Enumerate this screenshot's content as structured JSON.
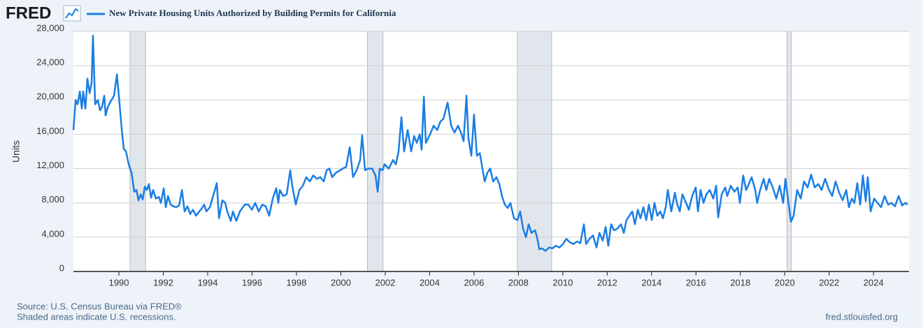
{
  "logo": "FRED",
  "footer": {
    "source": "Source: U.S. Census Bureau via FRED®",
    "note": "Shaded areas indicate U.S. recessions.",
    "url": "fred.stlouisfed.org"
  },
  "chart_data": {
    "type": "line",
    "y_label": "Units",
    "xlim": [
      1987.95,
      2025.6
    ],
    "ylim": [
      0,
      28000
    ],
    "xticks": [
      1990,
      1992,
      1994,
      1996,
      1998,
      2000,
      2002,
      2004,
      2006,
      2008,
      2010,
      2012,
      2014,
      2016,
      2018,
      2020,
      2022,
      2024
    ],
    "yticks": [
      0,
      {
        "value": 4000,
        "label": "4,000"
      },
      {
        "value": 8000,
        "label": "8,000"
      },
      {
        "value": 12000,
        "label": "12,000"
      },
      {
        "value": 16000,
        "label": "16,000"
      },
      {
        "value": 20000,
        "label": "20,000"
      },
      {
        "value": 24000,
        "label": "24,000"
      },
      {
        "value": 28000,
        "label": "28,000"
      }
    ],
    "grid": true,
    "recessions": [
      [
        1990.5,
        1991.2
      ],
      [
        2001.2,
        2001.9
      ],
      [
        2007.95,
        2009.5
      ],
      [
        2020.1,
        2020.3
      ]
    ],
    "x": [
      1987.95,
      1988.05,
      1988.14,
      1988.24,
      1988.33,
      1988.39,
      1988.49,
      1988.58,
      1988.68,
      1988.77,
      1988.83,
      1988.93,
      1989.05,
      1989.15,
      1989.24,
      1989.34,
      1989.4,
      1989.5,
      1989.62,
      1989.78,
      1989.91,
      1990.03,
      1990.13,
      1990.22,
      1990.32,
      1990.44,
      1990.57,
      1990.69,
      1990.79,
      1990.88,
      1990.98,
      1991.07,
      1991.17,
      1991.26,
      1991.35,
      1991.45,
      1991.54,
      1991.67,
      1991.8,
      1991.89,
      1992.02,
      1992.11,
      1992.21,
      1992.33,
      1992.46,
      1992.58,
      1992.71,
      1992.84,
      1992.96,
      1993.09,
      1993.21,
      1993.34,
      1993.47,
      1993.59,
      1993.72,
      1993.84,
      1993.94,
      1994.1,
      1994.41,
      1994.51,
      1994.66,
      1994.79,
      1994.88,
      1995.04,
      1995.14,
      1995.29,
      1995.45,
      1995.67,
      1995.83,
      1995.99,
      1996.14,
      1996.3,
      1996.46,
      1996.62,
      1996.77,
      1996.93,
      1997.09,
      1997.18,
      1997.25,
      1997.4,
      1997.56,
      1997.72,
      1997.81,
      1997.97,
      1998.13,
      1998.29,
      1998.44,
      1998.6,
      1998.76,
      1998.92,
      1999.07,
      1999.23,
      1999.36,
      1999.48,
      1999.61,
      1999.77,
      1999.96,
      2000.08,
      2000.24,
      2000.4,
      2000.55,
      2000.71,
      2000.87,
      2000.96,
      2001.09,
      2001.22,
      2001.41,
      2001.56,
      2001.66,
      2001.75,
      2001.88,
      2001.97,
      2002.16,
      2002.35,
      2002.48,
      2002.6,
      2002.73,
      2002.85,
      2003.01,
      2003.17,
      2003.3,
      2003.42,
      2003.55,
      2003.64,
      2003.74,
      2003.83,
      2004.02,
      2004.18,
      2004.34,
      2004.49,
      2004.62,
      2004.81,
      2004.97,
      2005.12,
      2005.28,
      2005.44,
      2005.53,
      2005.66,
      2005.75,
      2005.88,
      2006.0,
      2006.13,
      2006.26,
      2006.38,
      2006.48,
      2006.6,
      2006.73,
      2006.86,
      2007.01,
      2007.14,
      2007.27,
      2007.39,
      2007.52,
      2007.64,
      2007.8,
      2007.96,
      2008.08,
      2008.21,
      2008.34,
      2008.46,
      2008.59,
      2008.75,
      2008.84,
      2008.94,
      2009.06,
      2009.22,
      2009.38,
      2009.53,
      2009.69,
      2009.85,
      2010.01,
      2010.16,
      2010.32,
      2010.48,
      2010.64,
      2010.79,
      2010.95,
      2011.05,
      2011.2,
      2011.36,
      2011.52,
      2011.65,
      2011.8,
      2011.93,
      2012.05,
      2012.18,
      2012.31,
      2012.46,
      2012.62,
      2012.75,
      2012.87,
      2013.0,
      2013.13,
      2013.25,
      2013.38,
      2013.5,
      2013.63,
      2013.76,
      2013.88,
      2014.01,
      2014.13,
      2014.26,
      2014.39,
      2014.51,
      2014.64,
      2014.73,
      2014.89,
      2015.05,
      2015.14,
      2015.27,
      2015.39,
      2015.52,
      2015.68,
      2015.83,
      2015.99,
      2016.09,
      2016.21,
      2016.34,
      2016.47,
      2016.62,
      2016.78,
      2016.91,
      2017.0,
      2017.16,
      2017.32,
      2017.41,
      2017.57,
      2017.73,
      2017.88,
      2017.98,
      2018.13,
      2018.26,
      2018.35,
      2018.51,
      2018.67,
      2018.76,
      2018.89,
      2019.05,
      2019.17,
      2019.3,
      2019.46,
      2019.62,
      2019.77,
      2019.93,
      2020.03,
      2020.18,
      2020.28,
      2020.4,
      2020.56,
      2020.72,
      2020.87,
      2021.03,
      2021.19,
      2021.35,
      2021.51,
      2021.66,
      2021.82,
      2021.98,
      2022.14,
      2022.29,
      2022.45,
      2022.61,
      2022.77,
      2022.89,
      2023.02,
      2023.14,
      2023.27,
      2023.4,
      2023.52,
      2023.65,
      2023.74,
      2023.87,
      2024.03,
      2024.18,
      2024.34,
      2024.5,
      2024.66,
      2024.81,
      2024.97,
      2025.13,
      2025.29,
      2025.44,
      2025.54
    ],
    "series": [
      {
        "name": "New Private Housing Units Authorized by Building Permits for California",
        "color": "#1a7ee3",
        "values": [
          16500,
          20000,
          19500,
          21000,
          19000,
          21000,
          19000,
          22500,
          20800,
          22000,
          27500,
          19500,
          20000,
          18800,
          19200,
          20500,
          18200,
          19200,
          19800,
          20500,
          23000,
          19500,
          16500,
          14300,
          14000,
          12500,
          11500,
          9300,
          9500,
          8300,
          9000,
          8400,
          9900,
          9500,
          10200,
          8600,
          9500,
          8500,
          8700,
          8000,
          9700,
          7500,
          8800,
          7800,
          7600,
          7500,
          7700,
          9500,
          7000,
          7600,
          6700,
          7200,
          6500,
          6900,
          7300,
          7800,
          7000,
          7500,
          10300,
          6200,
          8300,
          8000,
          7000,
          5900,
          7000,
          5900,
          7000,
          7800,
          7800,
          7200,
          8000,
          7000,
          7800,
          7600,
          6500,
          8500,
          9700,
          8000,
          9500,
          8800,
          9000,
          11800,
          10000,
          7800,
          9500,
          10000,
          11000,
          10500,
          11200,
          10800,
          11000,
          10500,
          11800,
          12000,
          11000,
          11500,
          11800,
          12000,
          12200,
          14500,
          11000,
          11800,
          13000,
          15900,
          11800,
          12000,
          12000,
          11200,
          9300,
          12000,
          11800,
          12500,
          12000,
          13000,
          12500,
          14000,
          18000,
          14000,
          16500,
          14000,
          15800,
          15000,
          16000,
          14200,
          20400,
          15000,
          16000,
          17000,
          16500,
          17500,
          17800,
          19700,
          17000,
          16200,
          17000,
          16000,
          15200,
          20500,
          15500,
          13500,
          18300,
          13500,
          13800,
          12000,
          10500,
          11500,
          12000,
          10500,
          11000,
          10200,
          8700,
          7800,
          7400,
          8000,
          6200,
          6000,
          7000,
          5000,
          4000,
          5500,
          4500,
          4800,
          4000,
          2600,
          2700,
          2400,
          2800,
          2700,
          3000,
          2800,
          3200,
          3800,
          3400,
          3200,
          3500,
          3300,
          5500,
          3200,
          3800,
          4200,
          2800,
          4500,
          3600,
          5200,
          3000,
          5500,
          4800,
          5000,
          5500,
          4500,
          6000,
          6500,
          7000,
          5500,
          7200,
          6200,
          7500,
          6000,
          7800,
          6000,
          8000,
          6500,
          7000,
          6200,
          7500,
          9500,
          7000,
          9200,
          8000,
          7000,
          9000,
          8200,
          7200,
          8800,
          9800,
          7000,
          9500,
          8000,
          9000,
          9500,
          8500,
          10000,
          6300,
          9000,
          9800,
          8800,
          10000,
          9300,
          9800,
          8000,
          11200,
          9500,
          10000,
          11000,
          9500,
          8000,
          9500,
          10800,
          9500,
          10800,
          9800,
          8500,
          10000,
          8000,
          10800,
          7800,
          5800,
          6500,
          9500,
          8500,
          10500,
          9800,
          11300,
          9800,
          10200,
          9500,
          10800,
          9600,
          8800,
          10500,
          9200,
          8300,
          9500,
          7500,
          8500,
          8000,
          10300,
          7800,
          11200,
          8200,
          11000,
          7000,
          8500,
          8000,
          7500,
          8800,
          7800,
          8000,
          7600,
          8800,
          7700,
          8000,
          7800
        ]
      }
    ]
  }
}
